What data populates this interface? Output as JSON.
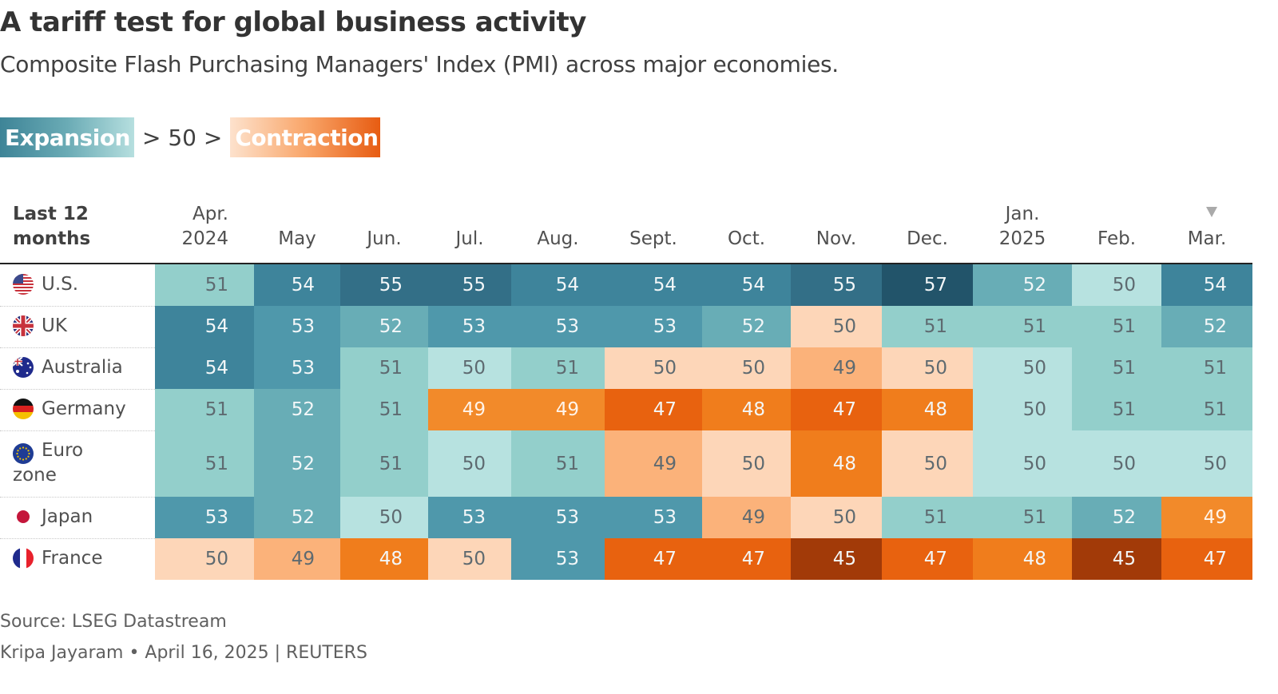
{
  "title": "A tariff test for global business activity",
  "subtitle": "Composite Flash Purchasing Managers' Index (PMI) across major economies.",
  "legend": {
    "expansion_label": "Expansion",
    "middle_label": "> 50 >",
    "contraction_label": "Contraction"
  },
  "header": {
    "row_label_line1": "Last 12",
    "row_label_line2": "months"
  },
  "footer": {
    "source": "Source: LSEG Datastream",
    "credit": "Kripa Jayaram • April 16, 2025 | REUTERS"
  },
  "colors": {
    "expansion_dark": "#1f5b74",
    "neutral": "#b7e2e0",
    "contraction_dark": "#9c3408"
  },
  "chart_data": {
    "type": "heatmap",
    "title": "A tariff test for global business activity",
    "subtitle": "Composite Flash Purchasing Managers' Index (PMI) across major economies.",
    "xlabel": "Last 12 months",
    "threshold": 50,
    "columns": [
      {
        "line1": "Apr.",
        "line2": "2024"
      },
      {
        "line1": "",
        "line2": "May"
      },
      {
        "line1": "",
        "line2": "Jun."
      },
      {
        "line1": "",
        "line2": "Jul."
      },
      {
        "line1": "",
        "line2": "Aug."
      },
      {
        "line1": "",
        "line2": "Sept."
      },
      {
        "line1": "",
        "line2": "Oct."
      },
      {
        "line1": "",
        "line2": "Nov."
      },
      {
        "line1": "",
        "line2": "Dec."
      },
      {
        "line1": "Jan.",
        "line2": "2025"
      },
      {
        "line1": "",
        "line2": "Feb."
      },
      {
        "line1": "",
        "line2": "Mar."
      }
    ],
    "latest_marker_column": "Mar.",
    "rows": [
      {
        "country": "U.S.",
        "flag": "us-flag",
        "values": [
          51,
          54,
          55,
          55,
          54,
          54,
          54,
          55,
          57,
          52,
          50,
          54
        ]
      },
      {
        "country": "UK",
        "flag": "uk-flag",
        "values": [
          54,
          53,
          52,
          53,
          53,
          53,
          52,
          50,
          51,
          51,
          51,
          52
        ]
      },
      {
        "country": "Australia",
        "flag": "australia-flag",
        "values": [
          54,
          53,
          51,
          50,
          51,
          50,
          50,
          49,
          50,
          50,
          51,
          51
        ]
      },
      {
        "country": "Germany",
        "flag": "germany-flag",
        "values": [
          51,
          52,
          51,
          49,
          49,
          47,
          48,
          47,
          48,
          50,
          51,
          51
        ]
      },
      {
        "country": "Euro zone",
        "flag": "eu-flag",
        "values": [
          51,
          52,
          51,
          50,
          51,
          49,
          50,
          48,
          50,
          50,
          50,
          50
        ]
      },
      {
        "country": "Japan",
        "flag": "japan-flag",
        "values": [
          53,
          52,
          50,
          53,
          53,
          53,
          49,
          50,
          51,
          51,
          52,
          49
        ]
      },
      {
        "country": "France",
        "flag": "france-flag",
        "values": [
          50,
          49,
          48,
          50,
          53,
          47,
          47,
          45,
          47,
          48,
          45,
          47
        ]
      }
    ],
    "legend": {
      "expansion": "Expansion",
      "contraction": "Contraction",
      "placement": "top-left"
    }
  }
}
